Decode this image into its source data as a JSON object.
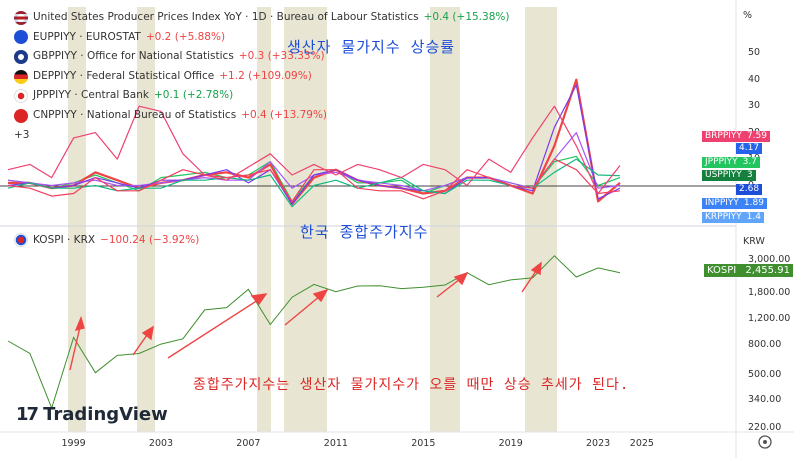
{
  "title_annotation": "생산자 물가지수 상승률",
  "kospi_annotation": "한국 종합주가지수",
  "bottom_annotation": "종합주가지수는 생산자 물가지수가 오를 때만 상승 추세가 된다.",
  "legend": [
    {
      "flag": "us-flag-icon",
      "label": "United States Producer Prices Index YoY · 1D · Bureau of Labour Statistics",
      "change": "+0.4 (+15.38%)",
      "color": "#22c55e"
    },
    {
      "flag": "eu-flag-icon",
      "label": "EUPPIYY · EUROSTAT",
      "change": "+0.2 (+5.88%)",
      "color": "#ef4444"
    },
    {
      "flag": "uk-flag-icon",
      "label": "GBPPIYY · Office for National Statistics",
      "change": "+0.3 (+33.33%)",
      "color": "#ef4444"
    },
    {
      "flag": "de-flag-icon",
      "label": "DEPPIYY · Federal Statistical Office",
      "change": "+1.2 (+109.09%)",
      "color": "#ef4444"
    },
    {
      "flag": "jp-flag-icon",
      "label": "JPPPIYY · Central Bank",
      "change": "+0.1 (+2.78%)",
      "color": "#22c55e"
    },
    {
      "flag": "cn-flag-icon",
      "label": "CNPPIYY · National Bureau of Statistics",
      "change": "+0.4 (+13.79%)",
      "color": "#ef4444"
    }
  ],
  "extra_legend": "+3",
  "kospi_legend": {
    "label": "KOSPI · KRX",
    "change": "−100.24 (−3.92%)"
  },
  "watermark": "TradingView",
  "watermark_logo": "17",
  "axis_unit_top": "%",
  "axis_unit_bottom": "KRW",
  "top_axis_ticks": [
    "50",
    "40",
    "30",
    "20",
    "10",
    "0"
  ],
  "bottom_axis_ticks": [
    "3,000.00",
    "1,800.00",
    "1,200.00",
    "800.00",
    "500.00",
    "340.00",
    "220.00"
  ],
  "x_ticks": [
    "1999",
    "2003",
    "2007",
    "2011",
    "2015",
    "2019",
    "2023",
    "2025"
  ],
  "series_badges": [
    {
      "name": "BRPPIYY",
      "value": "7.59",
      "color": "#ef4170"
    },
    {
      "name": "",
      "value": "4.17",
      "color": "#2563eb"
    },
    {
      "name": "JPPPIYY",
      "value": "3.7",
      "color": "#22c55e"
    },
    {
      "name": "USPPIYY",
      "value": "3",
      "color": "#15803d"
    },
    {
      "name": "",
      "value": "2.68",
      "color": "#1d4ed8"
    },
    {
      "name": "INPPIYY",
      "value": "1.89",
      "color": "#3b82f6"
    },
    {
      "name": "KRPPIYY",
      "value": "1.4",
      "color": "#60a5fa"
    }
  ],
  "kospi_badge": {
    "name": "KOSPI",
    "value": "2,455.91",
    "color": "#3f8f2f"
  },
  "chart_data": [
    {
      "type": "line",
      "title": "Producer Price Index YoY (%)",
      "x": [
        1996,
        1997,
        1998,
        1999,
        2000,
        2001,
        2002,
        2003,
        2004,
        2005,
        2006,
        2007,
        2008,
        2009,
        2010,
        2011,
        2012,
        2013,
        2014,
        2015,
        2016,
        2017,
        2018,
        2019,
        2020,
        2021,
        2022,
        2023,
        2024
      ],
      "ylim": [
        -10,
        55
      ],
      "series": [
        {
          "name": "USPPIYY",
          "color": "#22c55e",
          "values": [
            2,
            1,
            -1,
            1,
            4,
            1,
            -2,
            3,
            4,
            5,
            3,
            4,
            9,
            -6,
            4,
            6,
            1,
            1,
            2,
            -3,
            0,
            3,
            3,
            1,
            -1,
            9,
            11,
            0,
            3
          ]
        },
        {
          "name": "EUPPIYY",
          "color": "#ef4444",
          "values": [
            1,
            1,
            -1,
            0,
            5,
            2,
            -1,
            1,
            2,
            4,
            5,
            3,
            8,
            -7,
            3,
            6,
            2,
            0,
            -1,
            -3,
            -2,
            3,
            3,
            0,
            -3,
            15,
            40,
            -6,
            1
          ]
        },
        {
          "name": "GBPPIYY",
          "color": "#a855f7",
          "values": [
            2,
            1,
            0,
            1,
            2,
            0,
            0,
            1,
            2,
            3,
            2,
            2,
            9,
            -1,
            4,
            5,
            2,
            1,
            0,
            -2,
            0,
            3,
            3,
            1,
            -1,
            10,
            20,
            -1,
            0
          ]
        },
        {
          "name": "DEPPIYY",
          "color": "#7c3aed",
          "values": [
            0,
            1,
            -1,
            0,
            3,
            1,
            -1,
            2,
            2,
            4,
            6,
            1,
            6,
            -7,
            4,
            6,
            2,
            0,
            -1,
            -2,
            -3,
            3,
            3,
            0,
            -2,
            22,
            38,
            -5,
            -1
          ]
        },
        {
          "name": "JPPPIYY",
          "color": "#10b981",
          "values": [
            -1,
            1,
            -1,
            -1,
            0,
            -2,
            -1,
            -1,
            2,
            2,
            3,
            2,
            4,
            -8,
            0,
            2,
            -1,
            1,
            3,
            -2,
            -3,
            2,
            2,
            0,
            -1,
            5,
            10,
            4,
            3.7
          ]
        },
        {
          "name": "CNPPIYY",
          "color": "#f43f5e",
          "values": [
            0,
            -1,
            -4,
            -3,
            3,
            -2,
            -2,
            2,
            6,
            4,
            3,
            4,
            6,
            -6,
            6,
            6,
            -1,
            -2,
            -2,
            -5,
            -2,
            6,
            3,
            0,
            -1,
            10,
            6,
            -3,
            -2
          ]
        },
        {
          "name": "BRPPIYY",
          "color": "#ef4170",
          "values": [
            6,
            8,
            3,
            18,
            20,
            10,
            30,
            28,
            12,
            4,
            2,
            7,
            12,
            4,
            8,
            4,
            8,
            6,
            3,
            8,
            6,
            0,
            10,
            5,
            18,
            30,
            15,
            -3,
            7.59
          ]
        }
      ]
    },
    {
      "type": "line",
      "title": "KOSPI · KRX (KRW)",
      "x": [
        1996,
        1997,
        1998,
        1999,
        2000,
        2001,
        2002,
        2003,
        2004,
        2005,
        2006,
        2007,
        2008,
        2009,
        2010,
        2011,
        2012,
        2013,
        2014,
        2015,
        2016,
        2017,
        2018,
        2019,
        2020,
        2021,
        2022,
        2023,
        2024
      ],
      "yscale": "log",
      "ylim": [
        220,
        3500
      ],
      "series": [
        {
          "name": "KOSPI",
          "color": "#3f8f2f",
          "values": [
            850,
            700,
            300,
            900,
            520,
            680,
            700,
            810,
            880,
            1380,
            1430,
            1900,
            1100,
            1680,
            2050,
            1830,
            2000,
            2010,
            1920,
            1960,
            2030,
            2460,
            2040,
            2200,
            2270,
            3200,
            2300,
            2650,
            2455.91
          ]
        }
      ]
    }
  ]
}
